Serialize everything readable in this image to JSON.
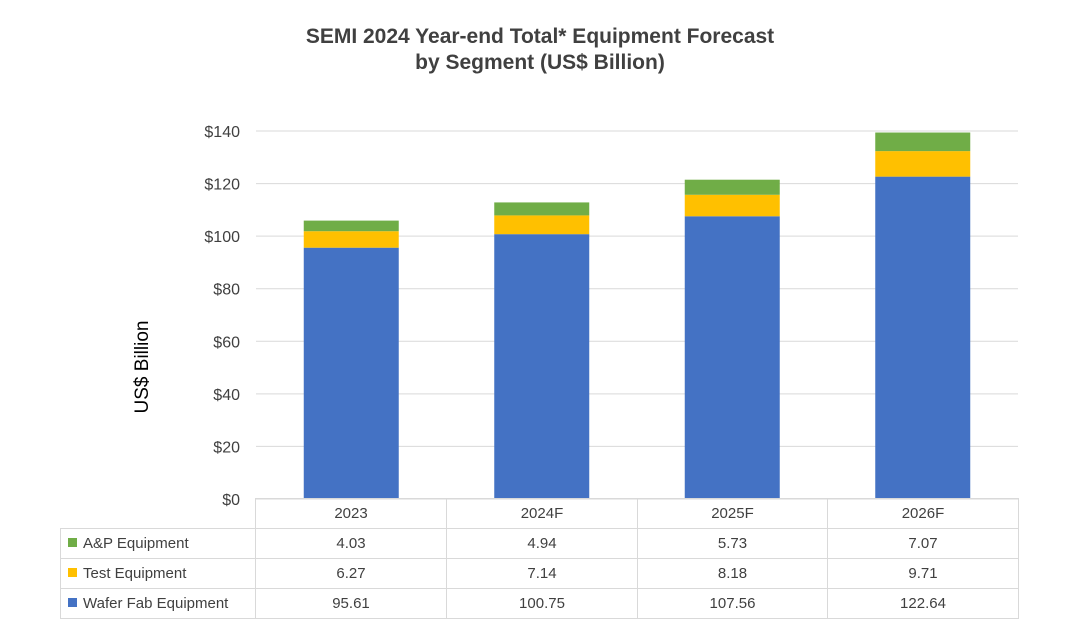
{
  "chart_data": {
    "type": "bar",
    "stacked": true,
    "title": [
      "SEMI 2024 Year-end Total* Equipment Forecast",
      "by Segment (US$ Billion)"
    ],
    "ylabel": "US$ Billion",
    "ylim": [
      0,
      140
    ],
    "yticks": [
      "$0",
      "$20",
      "$40",
      "$60",
      "$80",
      "$100",
      "$120",
      "$140"
    ],
    "grid": true,
    "categories": [
      "2023",
      "2024F",
      "2025F",
      "2026F"
    ],
    "series": [
      {
        "name": "A&P Equipment",
        "color": "#70ad47",
        "values": [
          4.03,
          4.94,
          5.73,
          7.07
        ]
      },
      {
        "name": "Test Equipment",
        "color": "#ffc000",
        "values": [
          6.27,
          7.14,
          8.18,
          9.71
        ]
      },
      {
        "name": "Wafer Fab Equipment",
        "color": "#4472c4",
        "values": [
          95.61,
          100.75,
          107.56,
          122.64
        ]
      }
    ],
    "value_labels": [
      [
        "4.03",
        "4.94",
        "5.73",
        "7.07"
      ],
      [
        "6.27",
        "7.14",
        "8.18",
        "9.71"
      ],
      [
        "95.61",
        "100.75",
        "107.56",
        "122.64"
      ]
    ],
    "legend_placement": "data-table"
  }
}
